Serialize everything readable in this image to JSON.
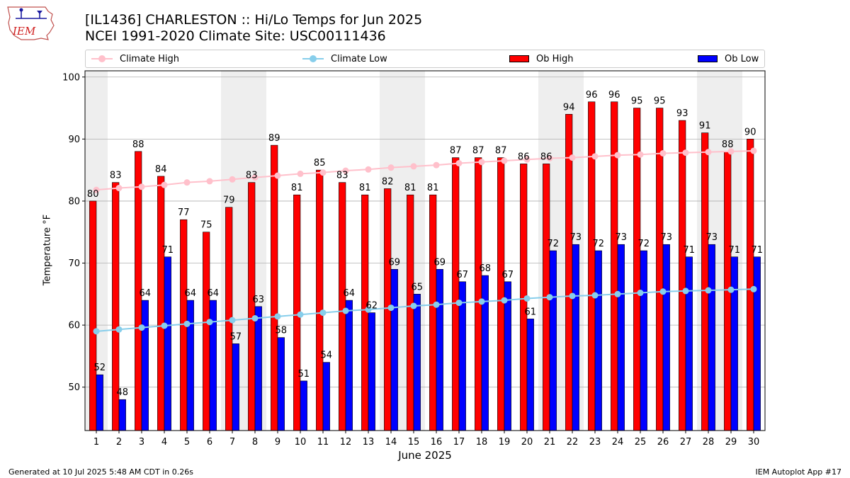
{
  "header": {
    "title": "[IL1436] CHARLESTON :: Hi/Lo Temps for Jun 2025",
    "subtitle": "NCEI 1991-2020 Climate Site: USC00111436"
  },
  "logo": {
    "text": "IEM"
  },
  "footer": {
    "generated": "Generated at 10 Jul 2025 5:48 AM CDT in 0.26s",
    "app": "IEM Autoplot App #17"
  },
  "colors": {
    "climate_high": "#ffc0cb",
    "climate_low": "#87ceeb",
    "ob_high": "#ff0000",
    "ob_low": "#0000ff",
    "weekend_band": "#eeeeee",
    "grid": "#b0b0b0"
  },
  "chart_data": {
    "type": "bar",
    "xlabel": "June 2025",
    "ylabel": "Temperature °F",
    "ylim": [
      43,
      101
    ],
    "yticks": [
      50,
      60,
      70,
      80,
      90,
      100
    ],
    "grid": "horizontal",
    "legend": "top",
    "categories": [
      "1",
      "2",
      "3",
      "4",
      "5",
      "6",
      "7",
      "8",
      "9",
      "10",
      "11",
      "12",
      "13",
      "14",
      "15",
      "16",
      "17",
      "18",
      "19",
      "20",
      "21",
      "22",
      "23",
      "24",
      "25",
      "26",
      "27",
      "28",
      "29",
      "30"
    ],
    "shaded_days": [
      1,
      7,
      8,
      14,
      15,
      21,
      22,
      28,
      29
    ],
    "series": [
      {
        "name": "Climate High",
        "kind": "line",
        "values": [
          81.8,
          82.1,
          82.3,
          82.6,
          83.0,
          83.2,
          83.5,
          83.8,
          84.1,
          84.4,
          84.6,
          84.9,
          85.1,
          85.4,
          85.6,
          85.8,
          86.1,
          86.3,
          86.5,
          86.7,
          86.9,
          87.0,
          87.2,
          87.4,
          87.5,
          87.7,
          87.8,
          87.9,
          88.0,
          88.1
        ]
      },
      {
        "name": "Climate Low",
        "kind": "line",
        "values": [
          59.0,
          59.3,
          59.6,
          59.9,
          60.2,
          60.5,
          60.8,
          61.1,
          61.4,
          61.7,
          62.0,
          62.3,
          62.5,
          62.8,
          63.1,
          63.3,
          63.6,
          63.8,
          64.0,
          64.3,
          64.5,
          64.7,
          64.8,
          65.0,
          65.2,
          65.4,
          65.5,
          65.6,
          65.7,
          65.8
        ]
      },
      {
        "name": "Ob High",
        "kind": "bar",
        "values": [
          80,
          83,
          88,
          84,
          77,
          75,
          79,
          83,
          89,
          81,
          85,
          83,
          81,
          82,
          81,
          81,
          87,
          87,
          87,
          86,
          86,
          94,
          96,
          96,
          95,
          95,
          93,
          91,
          88,
          90
        ]
      },
      {
        "name": "Ob Low",
        "kind": "bar",
        "values": [
          52,
          48,
          64,
          71,
          64,
          64,
          57,
          63,
          58,
          51,
          54,
          64,
          62,
          69,
          65,
          69,
          67,
          68,
          67,
          61,
          72,
          73,
          72,
          73,
          72,
          73,
          71,
          73,
          71,
          71
        ]
      }
    ]
  }
}
